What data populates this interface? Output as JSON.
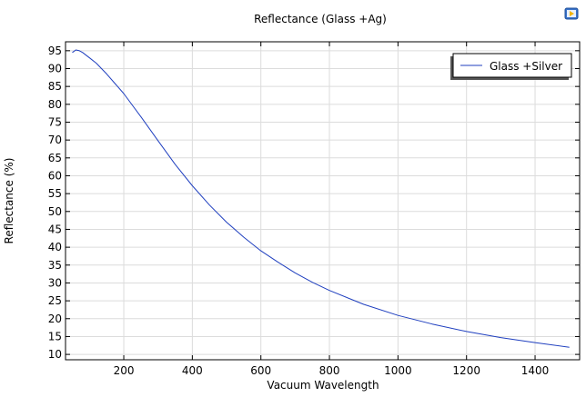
{
  "app_icon": "window-app-icon",
  "chart_data": {
    "type": "line",
    "title": "Reflectance (Glass +Ag)",
    "xlabel": "Vacuum Wavelength",
    "ylabel": "Reflectance (%)",
    "xlim": [
      30,
      1530
    ],
    "ylim": [
      8.5,
      97.5
    ],
    "xticks": [
      200,
      400,
      600,
      800,
      1000,
      1200,
      1400
    ],
    "yticks": [
      10,
      15,
      20,
      25,
      30,
      35,
      40,
      45,
      50,
      55,
      60,
      65,
      70,
      75,
      80,
      85,
      90,
      95
    ],
    "grid": true,
    "legend": "top-right",
    "series": [
      {
        "name": "Glass +Silver",
        "color": "#1f3fbf",
        "x": [
          50,
          60,
          70,
          80,
          100,
          120,
          150,
          200,
          250,
          300,
          350,
          400,
          450,
          500,
          550,
          600,
          650,
          700,
          750,
          800,
          900,
          1000,
          1100,
          1200,
          1300,
          1400,
          1500
        ],
        "y": [
          94.5,
          95.2,
          95.0,
          94.5,
          93.0,
          91.5,
          88.5,
          83.0,
          76.5,
          69.8,
          63.2,
          57.2,
          51.8,
          47.0,
          42.8,
          39.0,
          35.8,
          32.8,
          30.2,
          27.9,
          24.0,
          20.9,
          18.5,
          16.4,
          14.7,
          13.3,
          12.0
        ]
      }
    ]
  }
}
